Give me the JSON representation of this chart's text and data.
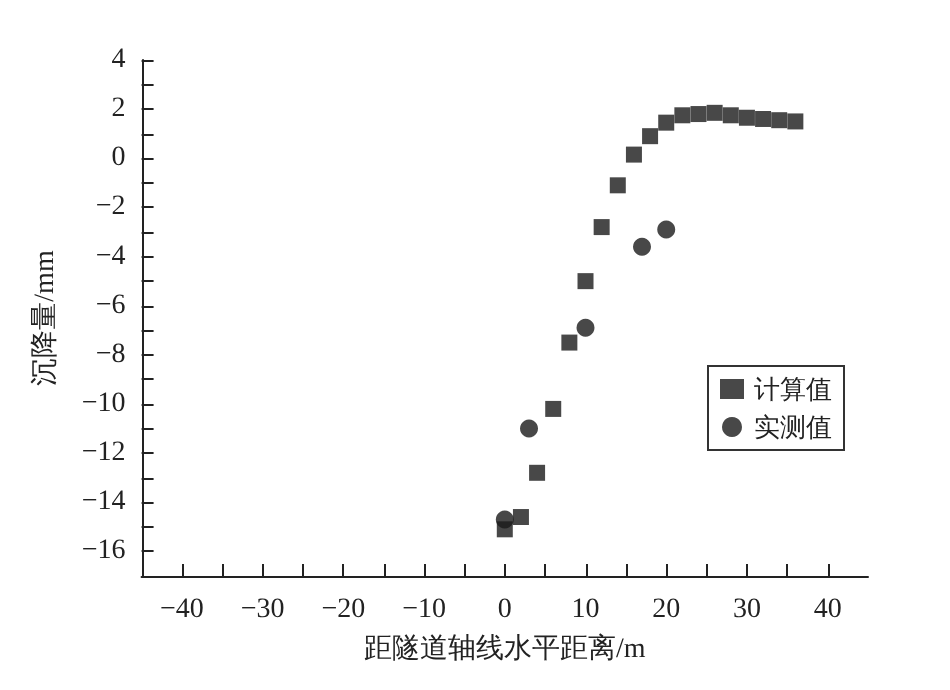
{
  "chart_data": {
    "type": "scatter",
    "xlabel": "距隧道轴线水平距离/m",
    "ylabel": "沉降量/mm",
    "xlim": [
      -45,
      45
    ],
    "xticks": [
      -40,
      -30,
      -20,
      -10,
      0,
      10,
      20,
      30,
      40
    ],
    "ylim": [
      -17,
      4
    ],
    "yticks": [
      -16,
      -14,
      -12,
      -10,
      -8,
      -6,
      -4,
      -2,
      0,
      2,
      4
    ],
    "grid": false,
    "legend": "right",
    "series": [
      {
        "name": "计算值",
        "color": "#1a1a1a",
        "marker": "square",
        "x": [
          0,
          2,
          4,
          6,
          8,
          10,
          12,
          14,
          16,
          18,
          20,
          22,
          24,
          26,
          28,
          30,
          32,
          34,
          36
        ],
        "values": [
          -15.1,
          -14.6,
          -12.8,
          -10.2,
          -7.5,
          -5,
          -2.8,
          -1.1,
          0.15,
          0.9,
          1.45,
          1.75,
          1.8,
          1.85,
          1.75,
          1.65,
          1.6,
          1.55,
          1.5
        ]
      },
      {
        "name": "实测值",
        "color": "#1a1a1a",
        "marker": "circle",
        "x": [
          0,
          3,
          10,
          17,
          20
        ],
        "values": [
          -14.7,
          -11,
          -6.9,
          -3.6,
          -2.9
        ]
      }
    ]
  }
}
